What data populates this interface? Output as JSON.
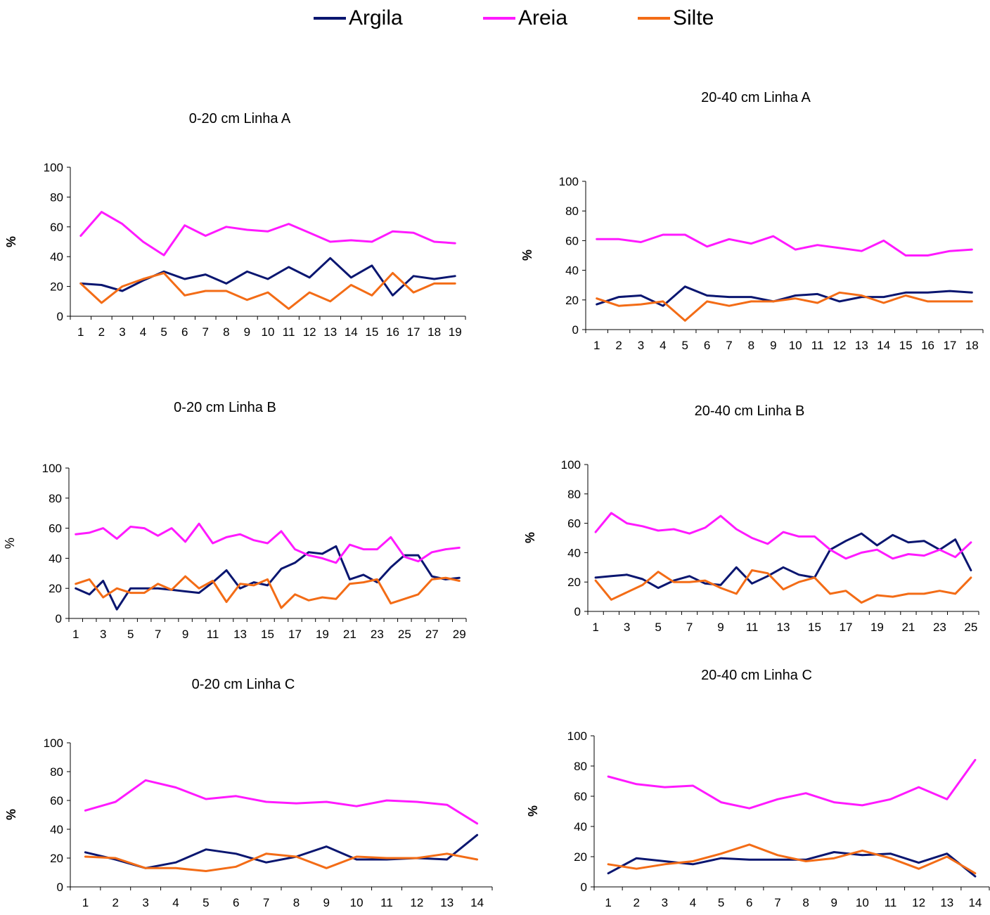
{
  "legend": [
    {
      "name": "Argila",
      "color": "#0a1670"
    },
    {
      "name": "Areia",
      "color": "#ff1aff"
    },
    {
      "name": "Silte",
      "color": "#f36c16"
    }
  ],
  "chart_data": [
    {
      "type": "line",
      "title": "0-20 cm Linha A",
      "ylabel": "%",
      "ylabel_bold": true,
      "ylim": [
        0,
        100
      ],
      "yticks": [
        0,
        20,
        40,
        60,
        80,
        100
      ],
      "x": [
        1,
        2,
        3,
        4,
        5,
        6,
        7,
        8,
        9,
        10,
        11,
        12,
        13,
        14,
        15,
        16,
        17,
        18,
        19
      ],
      "xticklabels": [
        "1",
        "2",
        "3",
        "4",
        "5",
        "6",
        "7",
        "8",
        "9",
        "10",
        "11",
        "12",
        "13",
        "14",
        "15",
        "16",
        "17",
        "18",
        "19"
      ],
      "series": [
        {
          "name": "Argila",
          "values": [
            22,
            21,
            17,
            24,
            30,
            25,
            28,
            22,
            30,
            25,
            33,
            26,
            39,
            26,
            34,
            14,
            27,
            25,
            27
          ]
        },
        {
          "name": "Areia",
          "values": [
            54,
            70,
            62,
            50,
            41,
            61,
            54,
            60,
            58,
            57,
            62,
            56,
            50,
            51,
            50,
            57,
            56,
            50,
            49
          ]
        },
        {
          "name": "Silte",
          "values": [
            22,
            9,
            20,
            25,
            29,
            14,
            17,
            17,
            11,
            16,
            5,
            16,
            10,
            21,
            14,
            29,
            16,
            22,
            22
          ]
        }
      ]
    },
    {
      "type": "line",
      "title": "20-40 cm Linha A",
      "ylabel": "%",
      "ylabel_bold": true,
      "ylim": [
        0,
        100
      ],
      "yticks": [
        0,
        20,
        40,
        60,
        80,
        100
      ],
      "x": [
        1,
        2,
        3,
        4,
        5,
        6,
        7,
        8,
        9,
        10,
        11,
        12,
        13,
        14,
        15,
        16,
        17,
        18
      ],
      "xticklabels": [
        "1",
        "2",
        "3",
        "4",
        "5",
        "6",
        "7",
        "8",
        "9",
        "10",
        "11",
        "12",
        "13",
        "14",
        "15",
        "16",
        "17",
        "18"
      ],
      "series": [
        {
          "name": "Argila",
          "values": [
            17,
            22,
            23,
            16,
            29,
            23,
            22,
            22,
            19,
            23,
            24,
            19,
            22,
            22,
            25,
            25,
            26,
            25
          ]
        },
        {
          "name": "Areia",
          "values": [
            61,
            61,
            59,
            64,
            64,
            56,
            61,
            58,
            63,
            54,
            57,
            55,
            53,
            60,
            50,
            50,
            53,
            54
          ]
        },
        {
          "name": "Silte",
          "values": [
            21,
            16,
            17,
            19,
            6,
            19,
            16,
            19,
            19,
            21,
            18,
            25,
            23,
            18,
            23,
            19,
            19,
            19
          ]
        }
      ]
    },
    {
      "type": "line",
      "title": "0-20 cm Linha B",
      "ylabel": "%",
      "ylabel_bold": false,
      "ylim": [
        0,
        100
      ],
      "yticks": [
        0,
        20,
        40,
        60,
        80,
        100
      ],
      "x": [
        1,
        2,
        3,
        4,
        5,
        6,
        7,
        8,
        9,
        10,
        11,
        12,
        13,
        14,
        15,
        16,
        17,
        18,
        19,
        20,
        21,
        22,
        23,
        24,
        25,
        26,
        27,
        28,
        29
      ],
      "xticklabels": [
        "1",
        "",
        "3",
        "",
        "5",
        "",
        "7",
        "",
        "9",
        "",
        "11",
        "",
        "13",
        "",
        "15",
        "",
        "17",
        "",
        "19",
        "",
        "21",
        "",
        "23",
        "",
        "25",
        "",
        "27",
        "",
        "29"
      ],
      "series": [
        {
          "name": "Argila",
          "values": [
            20,
            16,
            25,
            6,
            20,
            20,
            20,
            19,
            18,
            17,
            24,
            32,
            20,
            24,
            22,
            33,
            37,
            44,
            43,
            48,
            26,
            29,
            24,
            34,
            42,
            42,
            28,
            26,
            27
          ]
        },
        {
          "name": "Areia",
          "values": [
            56,
            57,
            60,
            53,
            61,
            60,
            55,
            60,
            51,
            63,
            50,
            54,
            56,
            52,
            50,
            58,
            46,
            42,
            40,
            37,
            49,
            46,
            46,
            54,
            41,
            38,
            44,
            46,
            47
          ]
        },
        {
          "name": "Silte",
          "values": [
            23,
            26,
            14,
            20,
            17,
            17,
            23,
            19,
            28,
            20,
            25,
            11,
            23,
            22,
            26,
            7,
            16,
            12,
            14,
            13,
            23,
            24,
            26,
            10,
            13,
            16,
            26,
            27,
            25
          ]
        }
      ]
    },
    {
      "type": "line",
      "title": "20-40 cm Linha B",
      "ylabel": "%",
      "ylabel_bold": true,
      "ylim": [
        0,
        100
      ],
      "yticks": [
        0,
        20,
        40,
        60,
        80,
        100
      ],
      "x": [
        1,
        2,
        3,
        4,
        5,
        6,
        7,
        8,
        9,
        10,
        11,
        12,
        13,
        14,
        15,
        16,
        17,
        18,
        19,
        20,
        21,
        22,
        23,
        24,
        25
      ],
      "xticklabels": [
        "1",
        "",
        "3",
        "",
        "5",
        "",
        "7",
        "",
        "9",
        "",
        "11",
        "",
        "13",
        "",
        "15",
        "",
        "17",
        "",
        "19",
        "",
        "21",
        "",
        "23",
        "",
        "25"
      ],
      "series": [
        {
          "name": "Argila",
          "values": [
            23,
            24,
            25,
            22,
            16,
            21,
            24,
            19,
            18,
            30,
            19,
            24,
            30,
            25,
            23,
            42,
            48,
            53,
            45,
            52,
            47,
            48,
            42,
            49,
            28
          ]
        },
        {
          "name": "Areia",
          "values": [
            54,
            67,
            60,
            58,
            55,
            56,
            53,
            57,
            65,
            56,
            50,
            46,
            54,
            51,
            51,
            42,
            36,
            40,
            42,
            36,
            39,
            38,
            42,
            37,
            47
          ]
        },
        {
          "name": "Silte",
          "values": [
            21,
            8,
            13,
            18,
            27,
            20,
            20,
            21,
            16,
            12,
            28,
            26,
            15,
            20,
            23,
            12,
            14,
            6,
            11,
            10,
            12,
            12,
            14,
            12,
            23
          ]
        }
      ]
    },
    {
      "type": "line",
      "title": "0-20 cm Linha C",
      "ylabel": "%",
      "ylabel_bold": true,
      "ylim": [
        0,
        100
      ],
      "yticks": [
        0,
        20,
        40,
        60,
        80,
        100
      ],
      "x": [
        1,
        2,
        3,
        4,
        5,
        6,
        7,
        8,
        9,
        10,
        11,
        12,
        13,
        14
      ],
      "xticklabels": [
        "1",
        "2",
        "3",
        "4",
        "5",
        "6",
        "7",
        "8",
        "9",
        "10",
        "11",
        "12",
        "13",
        "14"
      ],
      "series": [
        {
          "name": "Argila",
          "values": [
            24,
            19,
            13,
            17,
            26,
            23,
            17,
            21,
            28,
            19,
            19,
            20,
            19,
            36
          ]
        },
        {
          "name": "Areia",
          "values": [
            53,
            59,
            74,
            69,
            61,
            63,
            59,
            58,
            59,
            56,
            60,
            59,
            57,
            44
          ]
        },
        {
          "name": "Silte",
          "values": [
            21,
            20,
            13,
            13,
            11,
            14,
            23,
            21,
            13,
            21,
            20,
            20,
            23,
            19
          ]
        }
      ]
    },
    {
      "type": "line",
      "title": "20-40 cm Linha C",
      "ylabel": "%",
      "ylabel_bold": true,
      "ylim": [
        0,
        100
      ],
      "yticks": [
        0,
        20,
        40,
        60,
        80,
        100
      ],
      "x": [
        1,
        2,
        3,
        4,
        5,
        6,
        7,
        8,
        9,
        10,
        11,
        12,
        13,
        14
      ],
      "xticklabels": [
        "1",
        "2",
        "3",
        "4",
        "5",
        "6",
        "7",
        "8",
        "9",
        "10",
        "11",
        "12",
        "13",
        "14"
      ],
      "series": [
        {
          "name": "Argila",
          "values": [
            9,
            19,
            17,
            15,
            19,
            18,
            18,
            18,
            23,
            21,
            22,
            16,
            22,
            7
          ]
        },
        {
          "name": "Areia",
          "values": [
            73,
            68,
            66,
            67,
            56,
            52,
            58,
            62,
            56,
            54,
            58,
            66,
            58,
            84
          ]
        },
        {
          "name": "Silte",
          "values": [
            15,
            12,
            15,
            17,
            22,
            28,
            21,
            17,
            19,
            24,
            19,
            12,
            20,
            9
          ]
        }
      ]
    }
  ]
}
